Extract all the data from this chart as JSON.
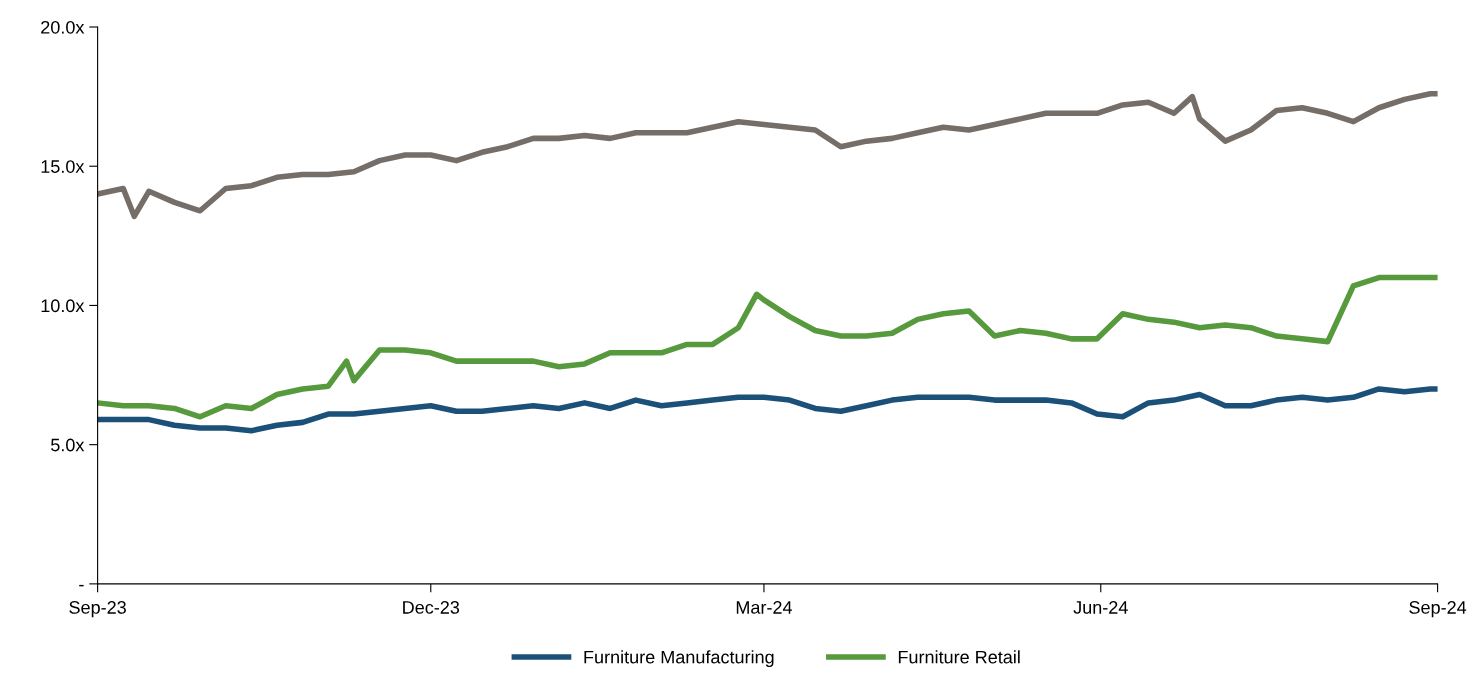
{
  "chart_data": {
    "type": "line",
    "ylim": [
      0,
      20
    ],
    "yticks": [
      {
        "value": 0,
        "label": "-"
      },
      {
        "value": 5,
        "label": "5.0x"
      },
      {
        "value": 10,
        "label": "10.0x"
      },
      {
        "value": 15,
        "label": "15.0x"
      },
      {
        "value": 20,
        "label": "20.0x"
      }
    ],
    "xlim": [
      "2023-09-30",
      "2024-09-30"
    ],
    "xticks": [
      {
        "value": "2023-09-30",
        "label": "Sep-23"
      },
      {
        "value": "2023-12-30",
        "label": "Dec-23"
      },
      {
        "value": "2024-03-30",
        "label": "Mar-24"
      },
      {
        "value": "2024-06-30",
        "label": "Jun-24"
      },
      {
        "value": "2024-09-30",
        "label": "Sep-24"
      }
    ],
    "grid": false,
    "legend": "bottom",
    "marker": "none",
    "line_style": "solid",
    "series": [
      {
        "color": "#756d67",
        "x": [
          "2023-09-30",
          "2023-10-07",
          "2023-10-10",
          "2023-10-14",
          "2023-10-21",
          "2023-10-28",
          "2023-11-04",
          "2023-11-11",
          "2023-11-18",
          "2023-11-25",
          "2023-12-02",
          "2023-12-09",
          "2023-12-16",
          "2023-12-23",
          "2023-12-30",
          "2024-01-06",
          "2024-01-13",
          "2024-01-20",
          "2024-01-27",
          "2024-02-03",
          "2024-02-10",
          "2024-02-17",
          "2024-02-24",
          "2024-03-02",
          "2024-03-09",
          "2024-03-16",
          "2024-03-23",
          "2024-03-30",
          "2024-04-06",
          "2024-04-13",
          "2024-04-20",
          "2024-04-27",
          "2024-05-04",
          "2024-05-11",
          "2024-05-18",
          "2024-05-25",
          "2024-06-01",
          "2024-06-08",
          "2024-06-15",
          "2024-06-22",
          "2024-06-29",
          "2024-07-06",
          "2024-07-13",
          "2024-07-20",
          "2024-07-25",
          "2024-07-27",
          "2024-08-03",
          "2024-08-10",
          "2024-08-17",
          "2024-08-24",
          "2024-08-31",
          "2024-09-07",
          "2024-09-14",
          "2024-09-21",
          "2024-09-28",
          "2024-09-30"
        ],
        "values": [
          14.0,
          14.2,
          13.2,
          14.1,
          13.7,
          13.4,
          14.2,
          14.3,
          14.6,
          14.7,
          14.7,
          14.8,
          15.2,
          15.4,
          15.4,
          15.2,
          15.5,
          15.7,
          16.0,
          16.0,
          16.1,
          16.0,
          16.2,
          16.2,
          16.2,
          16.4,
          16.6,
          16.5,
          16.4,
          16.3,
          15.7,
          15.9,
          16.0,
          16.2,
          16.4,
          16.3,
          16.5,
          16.7,
          16.9,
          16.9,
          16.9,
          17.2,
          17.3,
          16.9,
          17.5,
          16.7,
          15.9,
          16.3,
          17.0,
          17.1,
          16.9,
          16.6,
          17.1,
          17.4,
          17.6,
          17.6
        ]
      },
      {
        "name": "Furniture Manufacturing",
        "color": "#1b5078",
        "x": [
          "2023-09-30",
          "2023-10-07",
          "2023-10-14",
          "2023-10-21",
          "2023-10-28",
          "2023-11-04",
          "2023-11-11",
          "2023-11-18",
          "2023-11-25",
          "2023-12-02",
          "2023-12-09",
          "2023-12-16",
          "2023-12-23",
          "2023-12-30",
          "2024-01-06",
          "2024-01-13",
          "2024-01-20",
          "2024-01-27",
          "2024-02-03",
          "2024-02-10",
          "2024-02-17",
          "2024-02-24",
          "2024-03-02",
          "2024-03-09",
          "2024-03-16",
          "2024-03-23",
          "2024-03-30",
          "2024-04-06",
          "2024-04-13",
          "2024-04-20",
          "2024-04-27",
          "2024-05-04",
          "2024-05-11",
          "2024-05-18",
          "2024-05-25",
          "2024-06-01",
          "2024-06-08",
          "2024-06-15",
          "2024-06-22",
          "2024-06-29",
          "2024-07-06",
          "2024-07-13",
          "2024-07-20",
          "2024-07-27",
          "2024-08-03",
          "2024-08-10",
          "2024-08-17",
          "2024-08-24",
          "2024-08-31",
          "2024-09-07",
          "2024-09-14",
          "2024-09-21",
          "2024-09-28",
          "2024-09-30"
        ],
        "values": [
          5.9,
          5.9,
          5.9,
          5.7,
          5.6,
          5.6,
          5.5,
          5.7,
          5.8,
          6.1,
          6.1,
          6.2,
          6.3,
          6.4,
          6.2,
          6.2,
          6.3,
          6.4,
          6.3,
          6.5,
          6.3,
          6.6,
          6.4,
          6.5,
          6.6,
          6.7,
          6.7,
          6.6,
          6.3,
          6.2,
          6.4,
          6.6,
          6.7,
          6.7,
          6.7,
          6.6,
          6.6,
          6.6,
          6.5,
          6.1,
          6.0,
          6.5,
          6.6,
          6.8,
          6.4,
          6.4,
          6.6,
          6.7,
          6.6,
          6.7,
          7.0,
          6.9,
          7.0,
          7.0
        ]
      },
      {
        "name": "Furniture Retail",
        "color": "#57993d",
        "x": [
          "2023-09-30",
          "2023-10-07",
          "2023-10-14",
          "2023-10-21",
          "2023-10-28",
          "2023-11-04",
          "2023-11-11",
          "2023-11-18",
          "2023-11-25",
          "2023-12-02",
          "2023-12-07",
          "2023-12-09",
          "2023-12-16",
          "2023-12-23",
          "2023-12-30",
          "2024-01-06",
          "2024-01-13",
          "2024-01-20",
          "2024-01-27",
          "2024-02-03",
          "2024-02-10",
          "2024-02-17",
          "2024-02-24",
          "2024-03-02",
          "2024-03-09",
          "2024-03-16",
          "2024-03-23",
          "2024-03-28",
          "2024-03-30",
          "2024-04-06",
          "2024-04-13",
          "2024-04-20",
          "2024-04-27",
          "2024-05-04",
          "2024-05-11",
          "2024-05-18",
          "2024-05-25",
          "2024-06-01",
          "2024-06-08",
          "2024-06-15",
          "2024-06-22",
          "2024-06-29",
          "2024-07-06",
          "2024-07-13",
          "2024-07-20",
          "2024-07-27",
          "2024-08-03",
          "2024-08-10",
          "2024-08-17",
          "2024-08-24",
          "2024-08-31",
          "2024-09-07",
          "2024-09-14",
          "2024-09-21",
          "2024-09-28",
          "2024-09-30"
        ],
        "values": [
          6.5,
          6.4,
          6.4,
          6.3,
          6.0,
          6.4,
          6.3,
          6.8,
          7.0,
          7.1,
          8.0,
          7.3,
          8.4,
          8.4,
          8.3,
          8.0,
          8.0,
          8.0,
          8.0,
          7.8,
          7.9,
          8.3,
          8.3,
          8.3,
          8.6,
          8.6,
          9.2,
          10.4,
          10.2,
          9.6,
          9.1,
          8.9,
          8.9,
          9.0,
          9.5,
          9.7,
          9.8,
          8.9,
          9.1,
          9.0,
          8.8,
          8.8,
          9.7,
          9.5,
          9.4,
          9.2,
          9.3,
          9.2,
          8.9,
          8.8,
          8.7,
          10.7,
          11.0,
          11.0,
          11.0,
          11.0
        ]
      }
    ]
  }
}
